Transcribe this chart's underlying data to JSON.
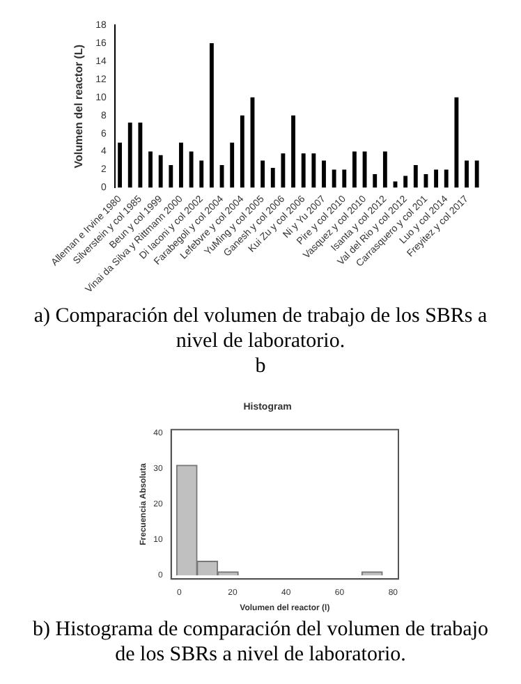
{
  "chart_data": [
    {
      "type": "bar",
      "ylabel": "Volumen del reactor (L)",
      "categories": [
        "Alleman e Irvine 1980",
        null,
        "Silverstein y col 1985",
        null,
        "Beun y col 1999",
        null,
        "Vinai da Silva y Rittmann 2000",
        null,
        "Di Iaconi y col 2002",
        null,
        "Farabegoli y col 2004",
        null,
        "Lefebvre y col 2004",
        null,
        "YuMing y col 2005",
        null,
        "Ganesh y col 2006",
        null,
        "Kui Zu y col 2006",
        null,
        "Ni y Yu 2007",
        null,
        "Pire y col 2010",
        null,
        "Vasquez y col 2010",
        null,
        "Isanta y col 2012",
        null,
        "Val del Rio y col 2012",
        null,
        "Carrasquero y col 201",
        null,
        "Luo y col 2014",
        null,
        "Freyitez y col 2017",
        null
      ],
      "values": [
        5,
        7.2,
        7.2,
        4,
        3.6,
        2.5,
        5,
        4,
        3,
        16,
        2.5,
        5,
        8,
        10,
        3,
        2.2,
        3.8,
        8,
        3.8,
        3.8,
        3,
        2,
        2,
        4,
        4,
        1.5,
        4,
        0.7,
        1.3,
        2.5,
        1.5,
        2,
        2,
        10,
        3,
        3
      ],
      "color": "#000000",
      "ylim": [
        0,
        18
      ],
      "yticks": [
        0,
        2,
        4,
        6,
        8,
        10,
        12,
        14,
        16,
        18
      ],
      "grid": false,
      "legend": false,
      "annotations": [
        "a) Comparación del volumen de trabajo de los SBRs a nivel de laboratorio.",
        "b"
      ]
    },
    {
      "type": "histogram",
      "title": "Histogram",
      "xlabel": "Volumen del reactor (l)",
      "ylabel": "Frecuencia Absoluta",
      "bins": [
        -1,
        6.7,
        14.4,
        22.1,
        29.8,
        37.5,
        45.2,
        52.9,
        60.6,
        68.3,
        76
      ],
      "values": [
        31,
        4,
        1,
        0,
        0,
        0,
        0,
        0,
        0,
        1
      ],
      "color": "#c0c0c0",
      "xlim": [
        -3,
        82
      ],
      "xticks": [
        0,
        20,
        40,
        60,
        80
      ],
      "ylim": [
        -1,
        41
      ],
      "yticks": [
        0,
        10,
        20,
        30,
        40
      ],
      "grid": false,
      "legend": false,
      "annotations": [
        "b) Histograma de comparación del volumen de trabajo de los SBRs a nivel de laboratorio."
      ]
    }
  ]
}
